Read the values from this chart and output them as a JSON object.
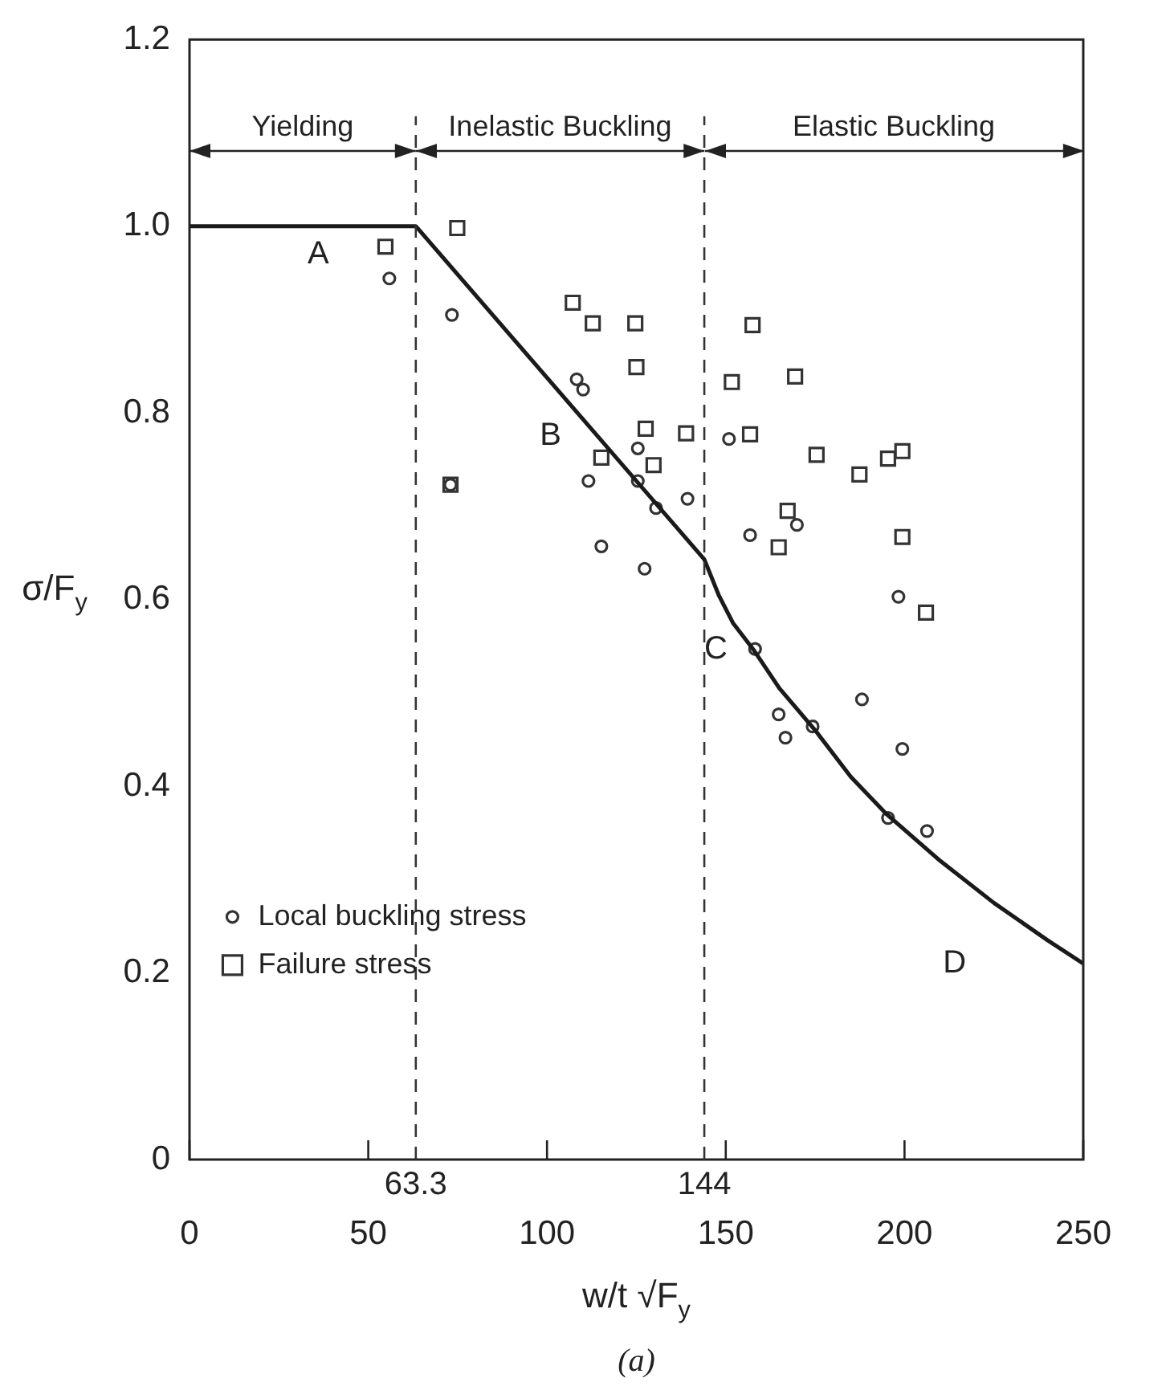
{
  "chart_data": {
    "type": "scatter",
    "xlabel": "w/t √F$_{y}$",
    "ylabel": "σ/F$_{y}$",
    "xlim": [
      0,
      250
    ],
    "xticks": [
      0,
      50,
      100,
      150,
      200,
      250
    ],
    "ylim": [
      0,
      1.2
    ],
    "yticks": [
      0,
      0.2,
      0.4,
      0.6,
      0.8,
      {
        "value": 1,
        "label": "1.0"
      },
      1.2
    ],
    "grid": false,
    "legend": "bottom left",
    "series": [
      {
        "type": "line",
        "color": "#1a1a1a",
        "marker": "none",
        "line_style": "solid",
        "x": [
          0,
          63.3,
          144,
          148,
          152,
          158,
          165,
          175,
          185,
          195,
          210,
          225,
          240,
          250
        ],
        "values": [
          1,
          1,
          0.643,
          0.605,
          0.575,
          0.545,
          0.505,
          0.46,
          0.41,
          0.37,
          0.32,
          0.275,
          0.235,
          0.21
        ]
      },
      {
        "name": "Local buckling stress",
        "color": "#333333",
        "marker": "circle",
        "x": [
          55.9,
          73.4,
          73,
          108.3,
          110.1,
          125.4,
          111.6,
          125.4,
          130.5,
          139.3,
          115.2,
          127.3,
          150.9,
          156.8,
          169.9,
          198.3,
          158.2,
          188.1,
          164.8,
          166.7,
          174.3,
          199.4,
          195.4,
          206.3
        ],
        "values": [
          0.944,
          0.905,
          0.723,
          0.836,
          0.825,
          0.762,
          0.727,
          0.727,
          0.698,
          0.708,
          0.657,
          0.633,
          0.772,
          0.669,
          0.68,
          0.603,
          0.547,
          0.493,
          0.477,
          0.452,
          0.464,
          0.44,
          0.366,
          0.352
        ]
      },
      {
        "name": "Failure stress",
        "color": "#333333",
        "marker": "square",
        "x": [
          54.8,
          74.9,
          107.2,
          112.8,
          124.7,
          125,
          127.6,
          138.9,
          115.2,
          129.8,
          73,
          151.7,
          157.5,
          156.8,
          169.4,
          175.4,
          187.4,
          195.4,
          199.4,
          167.3,
          164.8,
          199.4,
          206
        ],
        "values": [
          0.978,
          0.998,
          0.918,
          0.896,
          0.896,
          0.849,
          0.783,
          0.778,
          0.752,
          0.744,
          0.723,
          0.833,
          0.894,
          0.777,
          0.839,
          0.755,
          0.734,
          0.751,
          0.759,
          0.695,
          0.656,
          0.667,
          0.586
        ]
      }
    ],
    "ref_lines": [
      {
        "axis": "x",
        "value": 63.3,
        "label": "63.3",
        "line_style": "dashed",
        "color": "#333333"
      },
      {
        "axis": "x",
        "value": 144,
        "label": "144",
        "line_style": "dashed",
        "color": "#333333"
      }
    ],
    "annotations": [
      "Yielding",
      "Inelastic Buckling",
      "Elastic Buckling",
      "A",
      "B",
      "C",
      "D",
      "(a)"
    ]
  }
}
